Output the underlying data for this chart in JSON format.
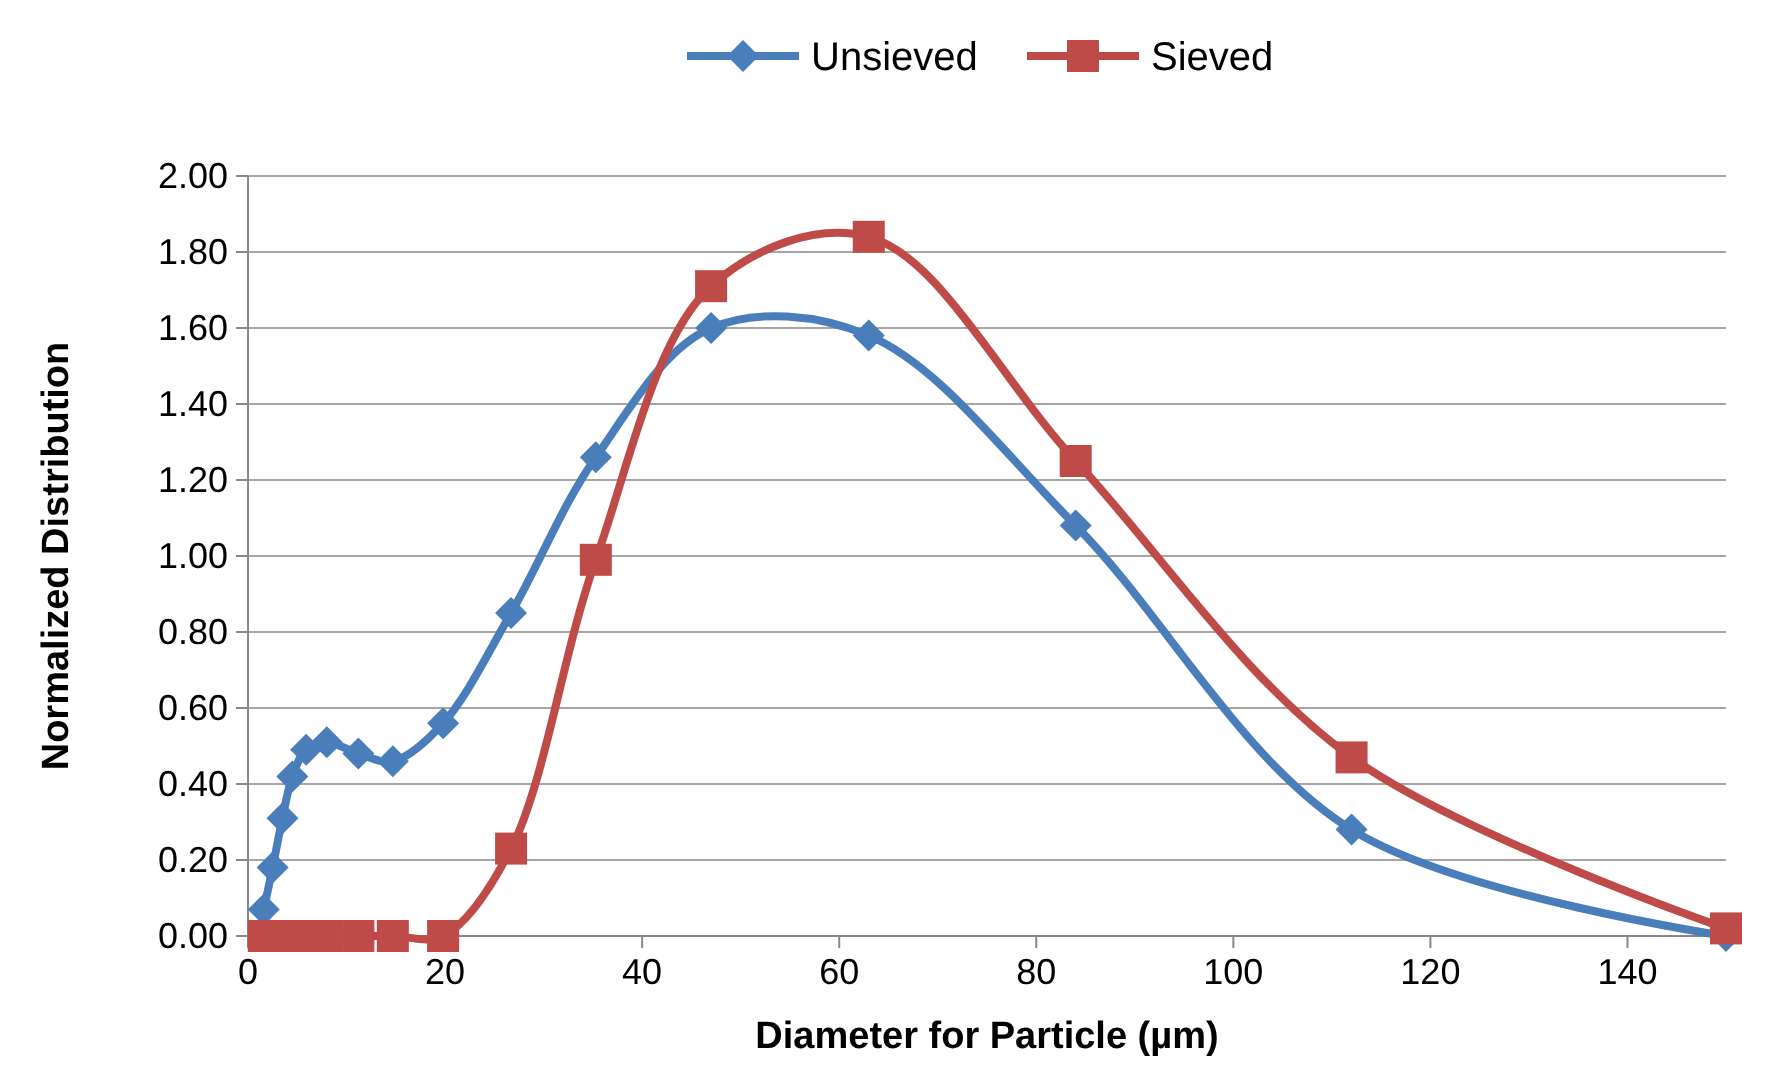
{
  "chart_data": {
    "type": "line",
    "xlabel": "Diameter for Particle (µm)",
    "ylabel": "Normalized Distribution",
    "xlim": [
      0,
      150
    ],
    "xticks": [
      0,
      20,
      40,
      60,
      80,
      100,
      120,
      140
    ],
    "ylim": [
      0,
      2
    ],
    "yticks": [
      {
        "value": 0,
        "label": "0.00"
      },
      {
        "value": 0.2,
        "label": "0.20"
      },
      {
        "value": 0.4,
        "label": "0.40"
      },
      {
        "value": 0.6,
        "label": "0.60"
      },
      {
        "value": 0.8,
        "label": "0.80"
      },
      {
        "value": 1,
        "label": "1.00"
      },
      {
        "value": 1.2,
        "label": "1.20"
      },
      {
        "value": 1.4,
        "label": "1.40"
      },
      {
        "value": 1.6,
        "label": "1.60"
      },
      {
        "value": 1.8,
        "label": "1.80"
      },
      {
        "value": 2,
        "label": "2.00"
      }
    ],
    "grid": "y",
    "legend": "top",
    "series": [
      {
        "name": "Unsieved",
        "color": "#4a7ebb",
        "marker": "diamond",
        "x": [
          1.6,
          2.5,
          3.5,
          4.5,
          5.9,
          8,
          11.2,
          14.7,
          19.8,
          26.7,
          35.3,
          47,
          63,
          84,
          112,
          150
        ],
        "values": [
          0.07,
          0.18,
          0.31,
          0.42,
          0.49,
          0.51,
          0.48,
          0.46,
          0.56,
          0.85,
          1.26,
          1.6,
          1.58,
          1.08,
          0.28,
          0
        ]
      },
      {
        "name": "Sieved",
        "color": "#be4b48",
        "marker": "square",
        "x": [
          1.6,
          2.5,
          3.5,
          4.5,
          5.9,
          8,
          11.2,
          14.7,
          19.8,
          26.7,
          35.3,
          47,
          63,
          84,
          112,
          150
        ],
        "values": [
          0,
          0,
          0,
          0,
          0,
          0,
          0,
          0,
          0,
          0.23,
          0.99,
          1.71,
          1.84,
          1.25,
          0.47,
          0.02
        ]
      }
    ]
  }
}
